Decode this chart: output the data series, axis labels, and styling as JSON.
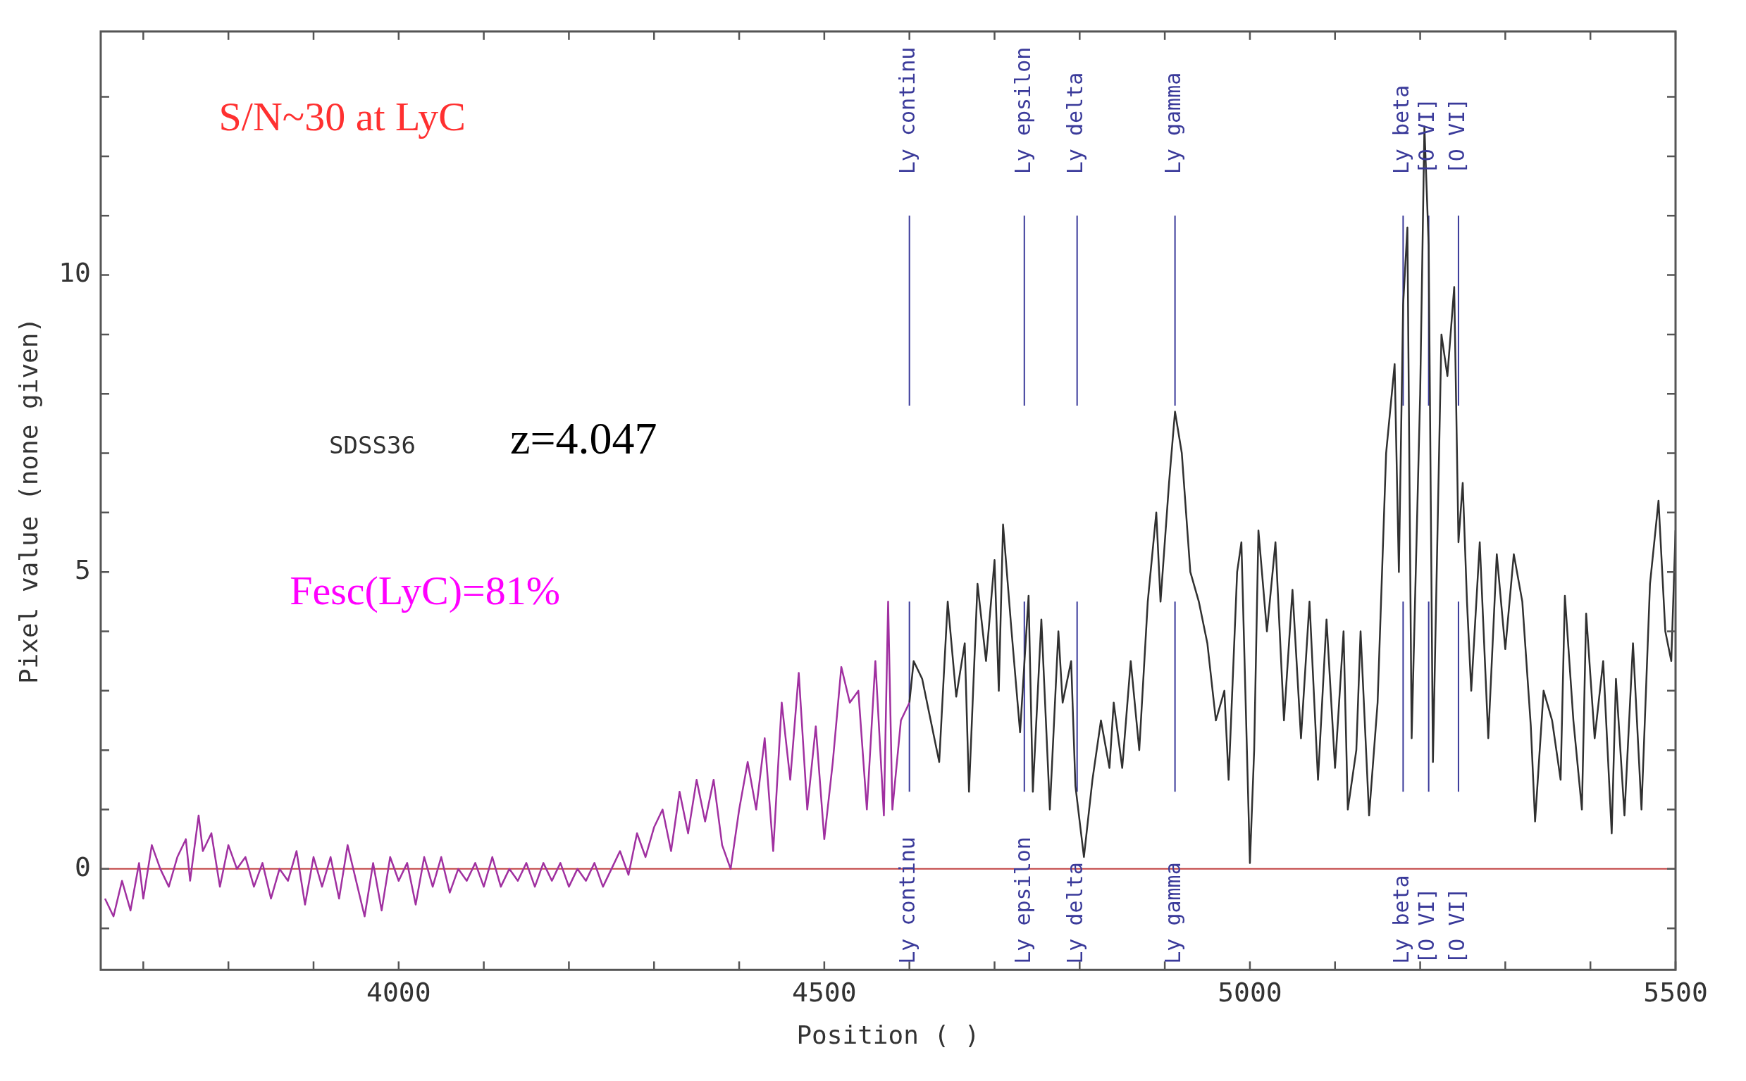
{
  "chart_data": {
    "type": "line",
    "xlabel": "Position ( )",
    "ylabel": "Pixel value (none given)",
    "xlim": [
      3650,
      5500
    ],
    "ylim": [
      -1.7,
      14.1
    ],
    "xticks": [
      {
        "value": 3700,
        "label": null
      },
      {
        "value": 3800,
        "label": null
      },
      {
        "value": 3900,
        "label": null
      },
      4000,
      {
        "value": 4100,
        "label": null
      },
      {
        "value": 4200,
        "label": null
      },
      {
        "value": 4300,
        "label": null
      },
      {
        "value": 4400,
        "label": null
      },
      4500,
      {
        "value": 4600,
        "label": null
      },
      {
        "value": 4700,
        "label": null
      },
      {
        "value": 4800,
        "label": null
      },
      {
        "value": 4900,
        "label": null
      },
      5000,
      {
        "value": 5100,
        "label": null
      },
      {
        "value": 5200,
        "label": null
      },
      {
        "value": 5300,
        "label": null
      },
      {
        "value": 5400,
        "label": null
      },
      5500
    ],
    "yticks": [
      {
        "value": -1,
        "label": null
      },
      0,
      {
        "value": 1,
        "label": null
      },
      {
        "value": 2,
        "label": null
      },
      {
        "value": 3,
        "label": null
      },
      {
        "value": 4,
        "label": null
      },
      5,
      {
        "value": 6,
        "label": null
      },
      {
        "value": 7,
        "label": null
      },
      {
        "value": 8,
        "label": null
      },
      {
        "value": 9,
        "label": null
      },
      10,
      {
        "value": 11,
        "label": null
      },
      {
        "value": 12,
        "label": null
      },
      {
        "value": 13,
        "label": null
      }
    ],
    "grid": false,
    "legend": false,
    "marker": "none",
    "line_style": "solid",
    "series": [
      {
        "color": "#a030a0",
        "x": [
          3655,
          3665,
          3675,
          3685,
          3695,
          3700,
          3710,
          3720,
          3730,
          3740,
          3750,
          3755,
          3765,
          3770,
          3780,
          3790,
          3800,
          3810,
          3820,
          3830,
          3840,
          3850,
          3860,
          3870,
          3880,
          3890,
          3900,
          3910,
          3920,
          3930,
          3940,
          3950,
          3960,
          3970,
          3980,
          3990,
          4000,
          4010,
          4020,
          4030,
          4040,
          4050,
          4060,
          4070,
          4080,
          4090,
          4100,
          4110,
          4120,
          4130,
          4140,
          4150,
          4160,
          4170,
          4180,
          4190,
          4200,
          4210,
          4220,
          4230,
          4240,
          4250,
          4260,
          4270,
          4280,
          4290,
          4300,
          4310,
          4320,
          4330,
          4340,
          4350,
          4360,
          4370,
          4380,
          4390,
          4400,
          4410,
          4420,
          4430,
          4440,
          4450,
          4460,
          4470,
          4480,
          4490,
          4500,
          4510,
          4520,
          4530,
          4540,
          4550,
          4560,
          4570,
          4575,
          4580,
          4590,
          4600
        ],
        "values": [
          -0.5,
          -0.8,
          -0.2,
          -0.7,
          0.1,
          -0.5,
          0.4,
          0.0,
          -0.3,
          0.2,
          0.5,
          -0.2,
          0.9,
          0.3,
          0.6,
          -0.3,
          0.4,
          0.0,
          0.2,
          -0.3,
          0.1,
          -0.5,
          0.0,
          -0.2,
          0.3,
          -0.6,
          0.2,
          -0.3,
          0.2,
          -0.5,
          0.4,
          -0.2,
          -0.8,
          0.1,
          -0.7,
          0.2,
          -0.2,
          0.1,
          -0.6,
          0.2,
          -0.3,
          0.2,
          -0.4,
          0.0,
          -0.2,
          0.1,
          -0.3,
          0.2,
          -0.3,
          0.0,
          -0.2,
          0.1,
          -0.3,
          0.1,
          -0.2,
          0.1,
          -0.3,
          0.0,
          -0.2,
          0.1,
          -0.3,
          0.0,
          0.3,
          -0.1,
          0.6,
          0.2,
          0.7,
          1.0,
          0.3,
          1.3,
          0.6,
          1.5,
          0.8,
          1.5,
          0.4,
          0.0,
          1.0,
          1.8,
          1.0,
          2.2,
          0.3,
          2.8,
          1.5,
          3.3,
          1.0,
          2.4,
          0.5,
          1.8,
          3.4,
          2.8,
          3.0,
          1.0,
          3.5,
          0.9,
          4.5,
          1.0,
          2.5,
          2.8
        ]
      },
      {
        "color": "#303030",
        "x": [
          4600,
          4605,
          4615,
          4625,
          4635,
          4645,
          4655,
          4665,
          4670,
          4680,
          4690,
          4700,
          4705,
          4710,
          4720,
          4730,
          4740,
          4745,
          4755,
          4765,
          4775,
          4780,
          4790,
          4795,
          4805,
          4815,
          4825,
          4835,
          4840,
          4850,
          4860,
          4870,
          4880,
          4890,
          4895,
          4905,
          4912,
          4920,
          4930,
          4940,
          4950,
          4960,
          4970,
          4975,
          4985,
          4990,
          5000,
          5005,
          5010,
          5020,
          5030,
          5040,
          5050,
          5060,
          5070,
          5080,
          5090,
          5100,
          5110,
          5115,
          5125,
          5130,
          5140,
          5150,
          5160,
          5170,
          5175,
          5180,
          5185,
          5190,
          5200,
          5205,
          5210,
          5215,
          5225,
          5232,
          5240,
          5245,
          5250,
          5255,
          5260,
          5270,
          5280,
          5290,
          5300,
          5310,
          5320,
          5330,
          5335,
          5345,
          5355,
          5365,
          5370,
          5380,
          5390,
          5395,
          5405,
          5415,
          5425,
          5430,
          5440,
          5450,
          5460,
          5470,
          5480,
          5488,
          5495,
          5500
        ],
        "values": [
          2.8,
          3.5,
          3.2,
          2.5,
          1.8,
          4.5,
          2.9,
          3.8,
          1.3,
          4.8,
          3.5,
          5.2,
          3.0,
          5.8,
          4.0,
          2.3,
          4.6,
          1.3,
          4.2,
          1.0,
          4.0,
          2.8,
          3.5,
          1.4,
          0.2,
          1.5,
          2.5,
          1.7,
          2.8,
          1.7,
          3.5,
          2.0,
          4.5,
          6.0,
          4.5,
          6.5,
          7.7,
          7.0,
          5.0,
          4.5,
          3.8,
          2.5,
          3.0,
          1.5,
          5.0,
          5.5,
          0.1,
          2.0,
          5.7,
          4.0,
          5.5,
          2.5,
          4.7,
          2.2,
          4.5,
          1.5,
          4.2,
          1.7,
          4.0,
          1.0,
          2.0,
          4.0,
          0.9,
          2.8,
          7.0,
          8.5,
          5.0,
          9.5,
          10.8,
          2.2,
          8.0,
          12.5,
          10.5,
          1.8,
          9.0,
          8.3,
          9.8,
          5.5,
          6.5,
          4.5,
          3.0,
          5.5,
          2.2,
          5.3,
          3.7,
          5.3,
          4.5,
          2.4,
          0.8,
          3.0,
          2.5,
          1.5,
          4.6,
          2.5,
          1.0,
          4.3,
          2.2,
          3.5,
          0.6,
          3.2,
          0.9,
          3.8,
          1.0,
          4.8,
          6.2,
          4.0,
          3.5,
          5.7
        ]
      }
    ],
    "ref_lines": [
      {
        "axis": "y",
        "value": 0,
        "color": "#c04040"
      },
      {
        "axis": "x",
        "value": 4600,
        "label": "Ly continu",
        "color": "#3a3a9a"
      },
      {
        "axis": "x",
        "value": 4735,
        "label": "Ly epsilon",
        "color": "#3a3a9a"
      },
      {
        "axis": "x",
        "value": 4797,
        "label": "Ly delta",
        "color": "#3a3a9a"
      },
      {
        "axis": "x",
        "value": 4912,
        "label": "Ly gamma",
        "color": "#3a3a9a"
      },
      {
        "axis": "x",
        "value": 5180,
        "label": "Ly beta",
        "color": "#3a3a9a"
      },
      {
        "axis": "x",
        "value": 5210,
        "label": "[O VI]",
        "color": "#3a3a9a"
      },
      {
        "axis": "x",
        "value": 5245,
        "label": "[O VI]",
        "color": "#3a3a9a"
      }
    ],
    "annotations": [
      "S/N~30 at LyC",
      "SDSS36",
      "z=4.047",
      "Fesc(LyC)=81%"
    ]
  }
}
